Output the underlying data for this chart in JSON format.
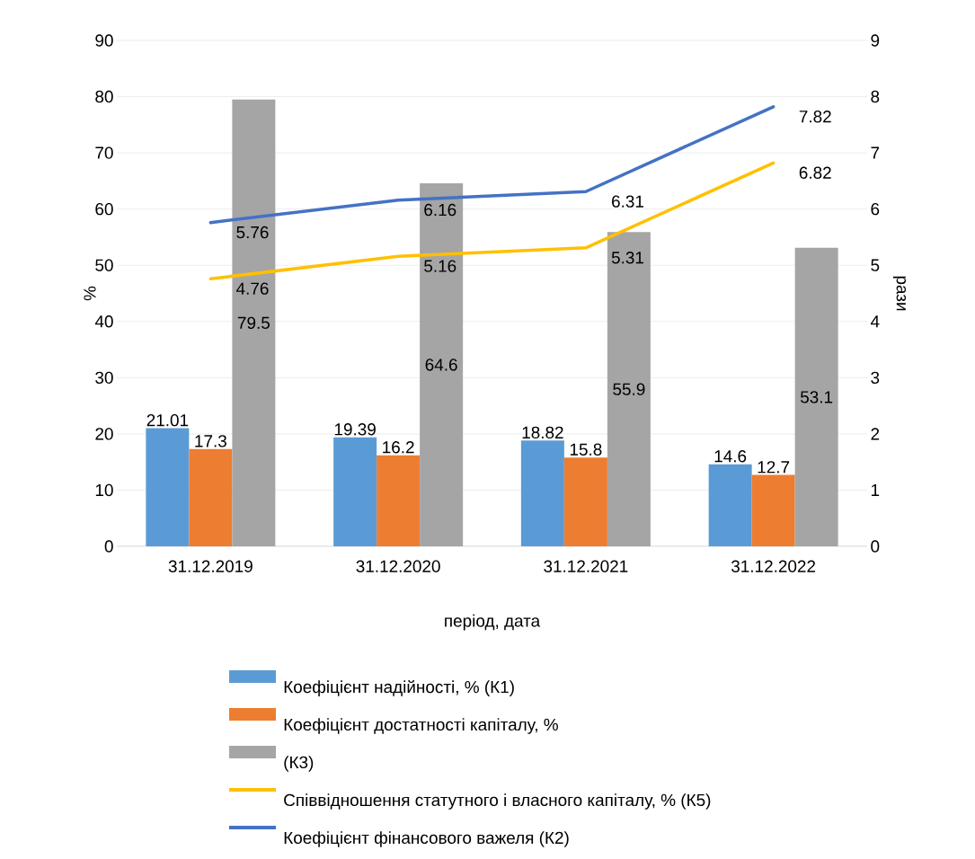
{
  "chart_data": {
    "type": "bar",
    "xlabel": "період, дата",
    "ylabel": "%",
    "y2label": "рази",
    "categories": [
      "31.12.2019",
      "31.12.2020",
      "31.12.2021",
      "31.12.2022"
    ],
    "ylim": [
      0,
      90
    ],
    "yticks": [
      0,
      10,
      20,
      30,
      40,
      50,
      60,
      70,
      80,
      90
    ],
    "y2lim": [
      0,
      9
    ],
    "y2ticks": [
      0,
      1,
      2,
      3,
      4,
      5,
      6,
      7,
      8,
      9
    ],
    "grid": "y",
    "legend": "bottom",
    "data_labels": true,
    "marker": "none",
    "line_style": "solid",
    "series": [
      {
        "name": "Коефіцієнт надійності, % (К1)",
        "color": "#5b9bd5",
        "values": [
          21.01,
          19.39,
          18.82,
          14.6
        ]
      },
      {
        "name": "Коефіцієнт достатності капіталу, %",
        "color": "#ed7d31",
        "values": [
          17.3,
          16.2,
          15.8,
          12.7
        ]
      },
      {
        "name": "(К3)",
        "color": "#a5a5a5",
        "values": [
          79.5,
          64.6,
          55.9,
          53.1
        ]
      },
      {
        "name": "Співвідношення статутного і власного капіталу, % (К5)",
        "type": "line",
        "axis": "y2",
        "color": "#ffc000",
        "values": [
          4.76,
          5.16,
          5.31,
          6.82
        ]
      },
      {
        "name": "Коефіцієнт фінансового важеля (К2)",
        "type": "line",
        "axis": "y2",
        "color": "#4472c4",
        "values": [
          5.76,
          6.16,
          6.31,
          7.82
        ]
      }
    ]
  }
}
